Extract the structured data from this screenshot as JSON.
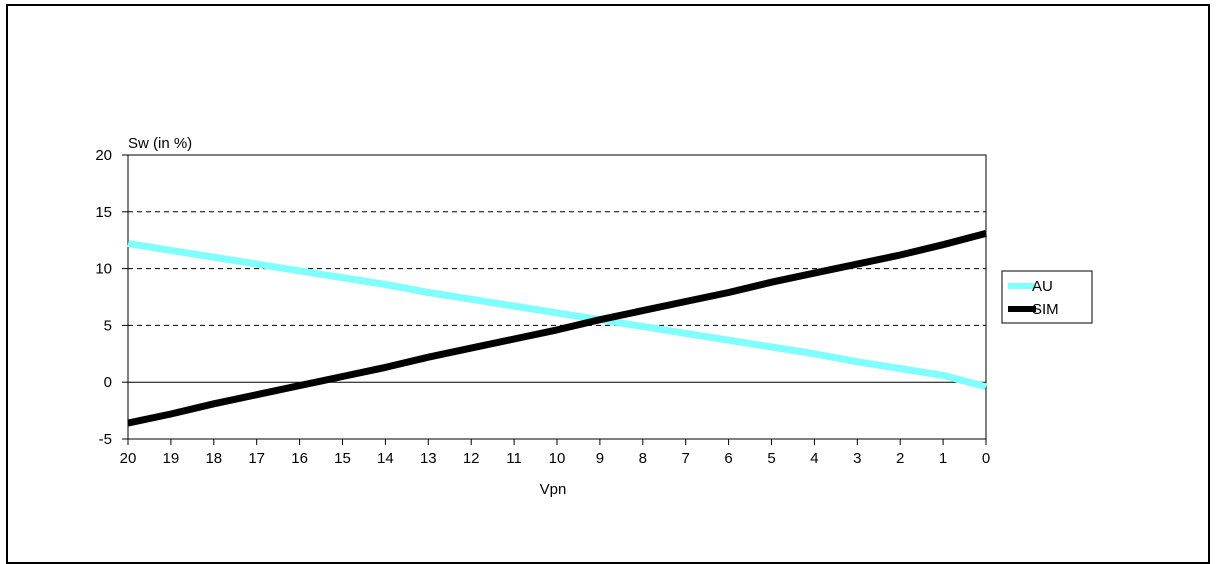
{
  "chart_data": {
    "type": "line",
    "title": "",
    "xlabel": "Vpn",
    "ylabel": "Sw (in %)",
    "x": [
      20,
      19,
      18,
      17,
      16,
      15,
      14,
      13,
      12,
      11,
      10,
      9,
      8,
      7,
      6,
      5,
      4,
      3,
      2,
      1,
      0
    ],
    "x_reversed": true,
    "xlim": [
      20,
      0
    ],
    "ylim": [
      -5,
      20
    ],
    "yticks": [
      -5,
      0,
      5,
      10,
      15,
      20
    ],
    "grid": "horizontal-dashed",
    "legend_position": "right",
    "series": [
      {
        "name": "AU",
        "color": "#80ffff",
        "values": [
          12.2,
          11.6,
          11.0,
          10.4,
          9.8,
          9.2,
          8.6,
          7.9,
          7.3,
          6.7,
          6.1,
          5.5,
          4.9,
          4.3,
          3.7,
          3.1,
          2.5,
          1.8,
          1.2,
          0.6,
          -0.4
        ]
      },
      {
        "name": "SIM",
        "color": "#000000",
        "values": [
          -3.6,
          -2.8,
          -1.9,
          -1.1,
          -0.3,
          0.5,
          1.3,
          2.2,
          3.0,
          3.8,
          4.6,
          5.5,
          6.3,
          7.1,
          7.9,
          8.8,
          9.6,
          10.4,
          11.2,
          12.1,
          13.1
        ]
      }
    ]
  }
}
